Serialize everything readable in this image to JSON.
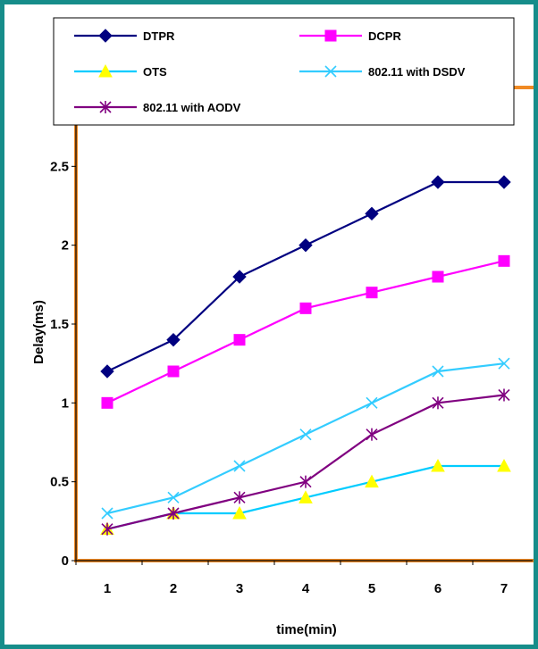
{
  "chart_data": {
    "type": "line",
    "title": "",
    "xlabel": "time(min)",
    "ylabel": "Delay(ms)",
    "categories": [
      "1",
      "2",
      "3",
      "4",
      "5",
      "6",
      "7"
    ],
    "ylim": [
      0,
      3
    ],
    "yticks": [
      "0",
      "0.5",
      "1",
      "1.5",
      "2",
      "2.5",
      "3"
    ],
    "grid": false,
    "legend_position": "top",
    "series": [
      {
        "name": "DTPR",
        "color": "#000080",
        "marker": "diamond",
        "values": [
          1.2,
          1.4,
          1.8,
          2.0,
          2.2,
          2.4,
          2.4
        ]
      },
      {
        "name": "DCPR",
        "color": "#ff00ff",
        "marker": "square",
        "values": [
          1.0,
          1.2,
          1.4,
          1.6,
          1.7,
          1.8,
          1.9
        ]
      },
      {
        "name": "OTS",
        "color": "#00ccff",
        "marker": "triangle",
        "marker_color": "#ffff00",
        "values": [
          0.2,
          0.3,
          0.3,
          0.4,
          0.5,
          0.6,
          0.6
        ]
      },
      {
        "name": "802.11 with DSDV",
        "color": "#33ccff",
        "marker": "x",
        "values": [
          0.3,
          0.4,
          0.6,
          0.8,
          1.0,
          1.2,
          1.25
        ]
      },
      {
        "name": "802.11 with AODV",
        "color": "#800080",
        "marker": "star",
        "values": [
          0.2,
          0.3,
          0.4,
          0.5,
          0.8,
          1.0,
          1.05
        ]
      }
    ],
    "plot_border_color": "#f08a24"
  }
}
